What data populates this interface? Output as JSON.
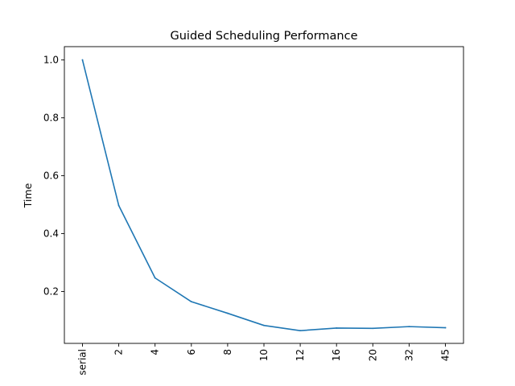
{
  "chart_data": {
    "type": "line",
    "title": "Guided Scheduling Performance",
    "xlabel": "",
    "ylabel": "Time",
    "categories": [
      "serial",
      "2",
      "4",
      "6",
      "8",
      "10",
      "12",
      "16",
      "20",
      "32",
      "45"
    ],
    "series": [
      {
        "values": [
          1.0,
          0.497,
          0.247,
          0.165,
          0.125,
          0.083,
          0.065,
          0.074,
          0.073,
          0.079,
          0.075
        ],
        "color": "#1f77b4"
      }
    ],
    "ylim": [
      0.021,
      1.046
    ],
    "yticks": [
      0.2,
      0.4,
      0.6,
      0.8,
      1.0
    ],
    "ytick_labels": [
      "0.2",
      "0.4",
      "0.6",
      "0.8",
      "1.0"
    ],
    "xtick_rotation": 90,
    "grid": false,
    "legend": "none"
  }
}
